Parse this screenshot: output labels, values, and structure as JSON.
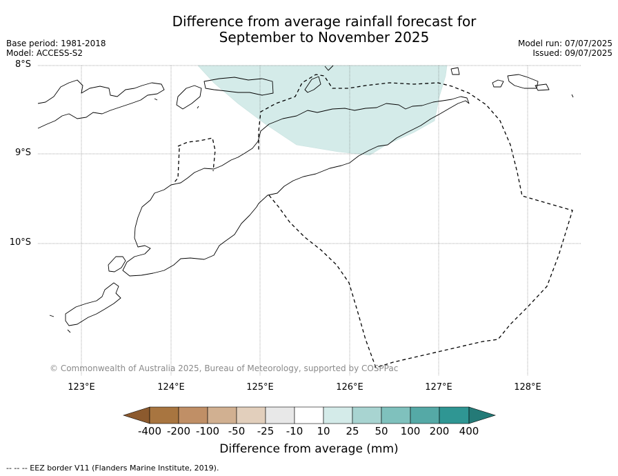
{
  "title_line1": "Difference from average rainfall forecast for",
  "title_line2": "September to November 2025",
  "base_period": "Base period: 1981-2018",
  "model": "Model: ACCESS-S2",
  "model_run": "Model run: 07/07/2025",
  "issued": "Issued: 09/07/2025",
  "lat_labels": [
    "8°S",
    "9°S",
    "10°S"
  ],
  "lon_labels": [
    "123°E",
    "124°E",
    "125°E",
    "126°E",
    "127°E",
    "128°E"
  ],
  "copyright": "© Commonwealth of Australia 2025, Bureau of Meteorology, supported by COSPPac",
  "colorbar": {
    "labels": [
      "-400",
      "-200",
      "-100",
      "-50",
      "-25",
      "-10",
      "10",
      "25",
      "50",
      "100",
      "200",
      "400"
    ],
    "colors": [
      "#8c5a2e",
      "#a87540",
      "#c08f66",
      "#d1b091",
      "#e2cfbc",
      "#e8e8e8",
      "#ffffff",
      "#d4ebe9",
      "#a8d4d1",
      "#7fc1bd",
      "#55a9a6",
      "#2f9693",
      "#247a77"
    ],
    "title": "Difference from average (mm)"
  },
  "footnote": "--  --  -- EEZ border V11 (Flanders Marine Institute, 2019).",
  "legend": {
    "eez_style": "dashed black line",
    "shaded_category": "10 to 25 mm"
  }
}
